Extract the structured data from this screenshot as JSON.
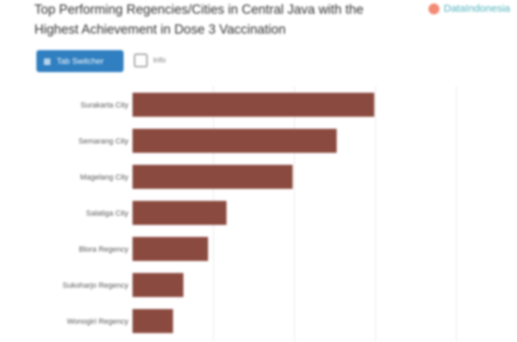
{
  "title": "Top Performing Regencies/Cities in Central Java with the Highest Achievement in Dose 3 Vaccination",
  "logo": "DataIndonesia",
  "toolbar": {
    "primary_label": "Tab Switcher",
    "secondary_label": "Info"
  },
  "colors": {
    "bar": "#8b4a3f",
    "button": "#2f7fc1",
    "logo": "#4fb3bf"
  },
  "chart_data": {
    "type": "bar",
    "orientation": "horizontal",
    "title": "Top Performing Regencies/Cities in Central Java with the Highest Achievement in Dose 3 Vaccination",
    "categories": [
      "Surakarta City",
      "Semarang City",
      "Magelang City",
      "Salatiga City",
      "Blora Regency",
      "Sukoharjo Regency",
      "Wonogiri Regency"
    ],
    "values": [
      74.6,
      63,
      49.4,
      29,
      23.3,
      15.7,
      12.5
    ],
    "xlim": [
      0,
      100
    ],
    "grid": true
  }
}
